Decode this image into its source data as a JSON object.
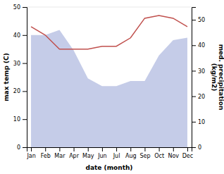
{
  "chart_data": {
    "type": "line",
    "categories": [
      "Jan",
      "Feb",
      "Mar",
      "Apr",
      "May",
      "Jun",
      "Jul",
      "Aug",
      "Sep",
      "Oct",
      "Nov",
      "Dec"
    ],
    "xlabel": "date (month)",
    "ylabel": "max temp (C)",
    "y2label": "med. precipitation\n(kg/m2)",
    "ylim": [
      0,
      50
    ],
    "yticks": [
      0,
      10,
      20,
      30,
      40,
      50
    ],
    "y2lim": [
      0,
      55
    ],
    "y2ticks": [
      0,
      10,
      20,
      30,
      40,
      50
    ],
    "series": [
      {
        "type": "area",
        "axis": "y2",
        "color": "#c5cce8",
        "values": [
          44,
          44,
          46,
          38,
          27,
          24,
          24,
          26,
          26,
          36,
          42,
          43
        ]
      },
      {
        "type": "line",
        "color": "#c0504d",
        "values": [
          43,
          40,
          35,
          35,
          35,
          36,
          36,
          39,
          46,
          47,
          46,
          43
        ]
      }
    ]
  }
}
